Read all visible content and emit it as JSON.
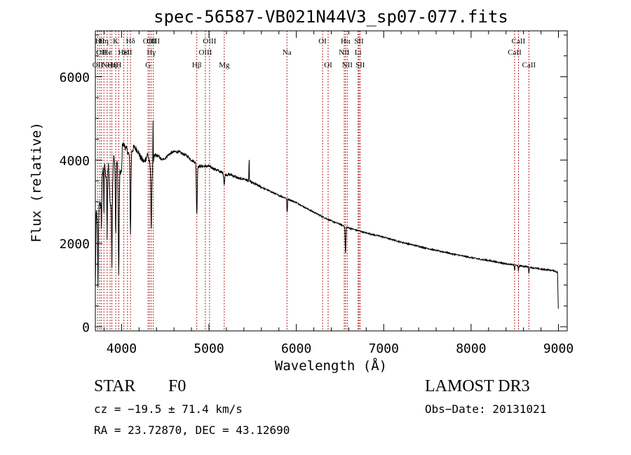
{
  "chart_data": {
    "type": "line",
    "title": "spec-56587-VB021N44V3_sp07-077.fits",
    "xlabel": "Wavelength (Å)",
    "ylabel": "Flux (relative)",
    "xlim": [
      3700,
      9100
    ],
    "ylim": [
      -100,
      7100
    ],
    "x_ticks": [
      {
        "value": 4000,
        "label": "4000"
      },
      {
        "value": 5000,
        "label": "5000"
      },
      {
        "value": 6000,
        "label": "6000"
      },
      {
        "value": 7000,
        "label": "7000"
      },
      {
        "value": 8000,
        "label": "8000"
      },
      {
        "value": 9000,
        "label": "9000"
      }
    ],
    "y_ticks": [
      {
        "value": 0,
        "label": "0"
      },
      {
        "value": 2000,
        "label": "2000"
      },
      {
        "value": 4000,
        "label": "4000"
      },
      {
        "value": 6000,
        "label": "6000"
      }
    ],
    "continuum": [
      [
        3700,
        900
      ],
      [
        3710,
        2800
      ],
      [
        3730,
        2400
      ],
      [
        3745,
        3000
      ],
      [
        3760,
        2900
      ],
      [
        3780,
        3600
      ],
      [
        3800,
        4000
      ],
      [
        3830,
        3400
      ],
      [
        3850,
        3900
      ],
      [
        3870,
        2900
      ],
      [
        3890,
        3100
      ],
      [
        3910,
        4100
      ],
      [
        3930,
        3700
      ],
      [
        3950,
        4000
      ],
      [
        3965,
        2800
      ],
      [
        3980,
        3700
      ],
      [
        4000,
        3700
      ],
      [
        4010,
        4400
      ],
      [
        4030,
        4350
      ],
      [
        4060,
        4250
      ],
      [
        4090,
        4100
      ],
      [
        4102,
        3300
      ],
      [
        4115,
        4200
      ],
      [
        4140,
        4300
      ],
      [
        4180,
        4250
      ],
      [
        4220,
        4050
      ],
      [
        4260,
        3950
      ],
      [
        4300,
        4150
      ],
      [
        4330,
        3800
      ],
      [
        4340,
        3400
      ],
      [
        4360,
        3900
      ],
      [
        4380,
        4100
      ],
      [
        4420,
        4100
      ],
      [
        4460,
        4000
      ],
      [
        4500,
        4050
      ],
      [
        4550,
        4150
      ],
      [
        4600,
        4200
      ],
      [
        4650,
        4200
      ],
      [
        4700,
        4150
      ],
      [
        4750,
        4100
      ],
      [
        4800,
        4000
      ],
      [
        4840,
        3950
      ],
      [
        4880,
        3850
      ],
      [
        4920,
        3850
      ],
      [
        4960,
        3850
      ],
      [
        5000,
        3850
      ],
      [
        5050,
        3800
      ],
      [
        5100,
        3750
      ],
      [
        5150,
        3700
      ],
      [
        5200,
        3650
      ],
      [
        5250,
        3650
      ],
      [
        5300,
        3600
      ],
      [
        5350,
        3550
      ],
      [
        5400,
        3550
      ],
      [
        5450,
        3500
      ],
      [
        5500,
        3450
      ],
      [
        5600,
        3350
      ],
      [
        5700,
        3250
      ],
      [
        5800,
        3150
      ],
      [
        5890,
        3080
      ],
      [
        6000,
        2980
      ],
      [
        6100,
        2860
      ],
      [
        6200,
        2750
      ],
      [
        6300,
        2640
      ],
      [
        6400,
        2540
      ],
      [
        6500,
        2460
      ],
      [
        6600,
        2370
      ],
      [
        6700,
        2310
      ],
      [
        6800,
        2250
      ],
      [
        6900,
        2200
      ],
      [
        7000,
        2150
      ],
      [
        7100,
        2090
      ],
      [
        7200,
        2030
      ],
      [
        7300,
        1980
      ],
      [
        7400,
        1930
      ],
      [
        7500,
        1880
      ],
      [
        7600,
        1830
      ],
      [
        7700,
        1790
      ],
      [
        7800,
        1740
      ],
      [
        7900,
        1700
      ],
      [
        8000,
        1660
      ],
      [
        8100,
        1620
      ],
      [
        8200,
        1590
      ],
      [
        8300,
        1550
      ],
      [
        8400,
        1510
      ],
      [
        8500,
        1480
      ],
      [
        8600,
        1450
      ],
      [
        8700,
        1420
      ],
      [
        8800,
        1380
      ],
      [
        8900,
        1360
      ],
      [
        8960,
        1340
      ],
      [
        8990,
        1300
      ],
      [
        9000,
        200
      ]
    ],
    "absorption_features": [
      {
        "center": 3730,
        "depth": 1500,
        "width": 5
      },
      {
        "center": 3770,
        "depth": 900,
        "width": 4
      },
      {
        "center": 3798,
        "depth": 1300,
        "width": 4
      },
      {
        "center": 3835,
        "depth": 1500,
        "width": 4
      },
      {
        "center": 3889,
        "depth": 1600,
        "width": 5
      },
      {
        "center": 3933,
        "depth": 1600,
        "width": 5
      },
      {
        "center": 3968,
        "depth": 1700,
        "width": 6
      },
      {
        "center": 4102,
        "depth": 1100,
        "width": 6
      },
      {
        "center": 4340,
        "depth": 1100,
        "width": 6
      },
      {
        "center": 4861,
        "depth": 1200,
        "width": 7
      },
      {
        "center": 5175,
        "depth": 250,
        "width": 8
      },
      {
        "center": 5895,
        "depth": 350,
        "width": 5
      },
      {
        "center": 6563,
        "depth": 650,
        "width": 6
      },
      {
        "center": 8498,
        "depth": 150,
        "width": 4
      },
      {
        "center": 8542,
        "depth": 150,
        "width": 4
      },
      {
        "center": 8662,
        "depth": 150,
        "width": 4
      }
    ],
    "emission_features": [
      {
        "center": 4360,
        "height": 1100,
        "width": 3
      },
      {
        "center": 5460,
        "height": 550,
        "width": 3
      }
    ],
    "lines": [
      {
        "wave": 3727,
        "label": "OII",
        "row": 3
      },
      {
        "wave": 3750,
        "label": "Hθ",
        "row": 1
      },
      {
        "wave": 3770,
        "label": "OII",
        "row": 2
      },
      {
        "wave": 3798,
        "label": "Hη",
        "row": 1
      },
      {
        "wave": 3835,
        "label": "He",
        "row": 2
      },
      {
        "wave": 3869,
        "label": "NeIII",
        "row": 3
      },
      {
        "wave": 3889,
        "label": "Hη",
        "row": 3
      },
      {
        "wave": 3933,
        "label": "K",
        "row": 1
      },
      {
        "wave": 3968,
        "label": "H",
        "row": 3
      },
      {
        "wave": 4026,
        "label": "HeI",
        "row": 2
      },
      {
        "wave": 4068,
        "label": "SII",
        "row": 2
      },
      {
        "wave": 4102,
        "label": "Hδ",
        "row": 1
      },
      {
        "wave": 4304,
        "label": "G",
        "row": 3
      },
      {
        "wave": 4320,
        "label": "OIII",
        "row": 1
      },
      {
        "wave": 4340,
        "label": "Hγ",
        "row": 2
      },
      {
        "wave": 4363,
        "label": "OIII",
        "row": 1
      },
      {
        "wave": 4861,
        "label": "Hβ",
        "row": 3
      },
      {
        "wave": 4959,
        "label": "OIII",
        "row": 2
      },
      {
        "wave": 5007,
        "label": "OIII",
        "row": 1
      },
      {
        "wave": 5175,
        "label": "Mg",
        "row": 3
      },
      {
        "wave": 5893,
        "label": "Na",
        "row": 2
      },
      {
        "wave": 6300,
        "label": "OI",
        "row": 1
      },
      {
        "wave": 6364,
        "label": "OI",
        "row": 3
      },
      {
        "wave": 6548,
        "label": "NII",
        "row": 2
      },
      {
        "wave": 6563,
        "label": "Hα",
        "row": 1
      },
      {
        "wave": 6583,
        "label": "NII",
        "row": 3
      },
      {
        "wave": 6707,
        "label": "Li",
        "row": 2
      },
      {
        "wave": 6717,
        "label": "SII",
        "row": 1
      },
      {
        "wave": 6731,
        "label": "SII",
        "row": 3
      },
      {
        "wave": 8498,
        "label": "CaII",
        "row": 2
      },
      {
        "wave": 8542,
        "label": "CaII",
        "row": 1
      },
      {
        "wave": 8662,
        "label": "CaII",
        "row": 3
      }
    ]
  },
  "info": {
    "object_class": "STAR",
    "subclass": "F0",
    "survey": "LAMOST DR3",
    "redshift_text": "cz = −19.5 ± 71.4 km/s",
    "obs_date_text": "Obs−Date: 20131021",
    "coords_text": "RA =  23.72870, DEC =  43.12690"
  },
  "colors": {
    "background": "#ffffff",
    "foreground": "#000000",
    "line_marker": "#b22222"
  }
}
